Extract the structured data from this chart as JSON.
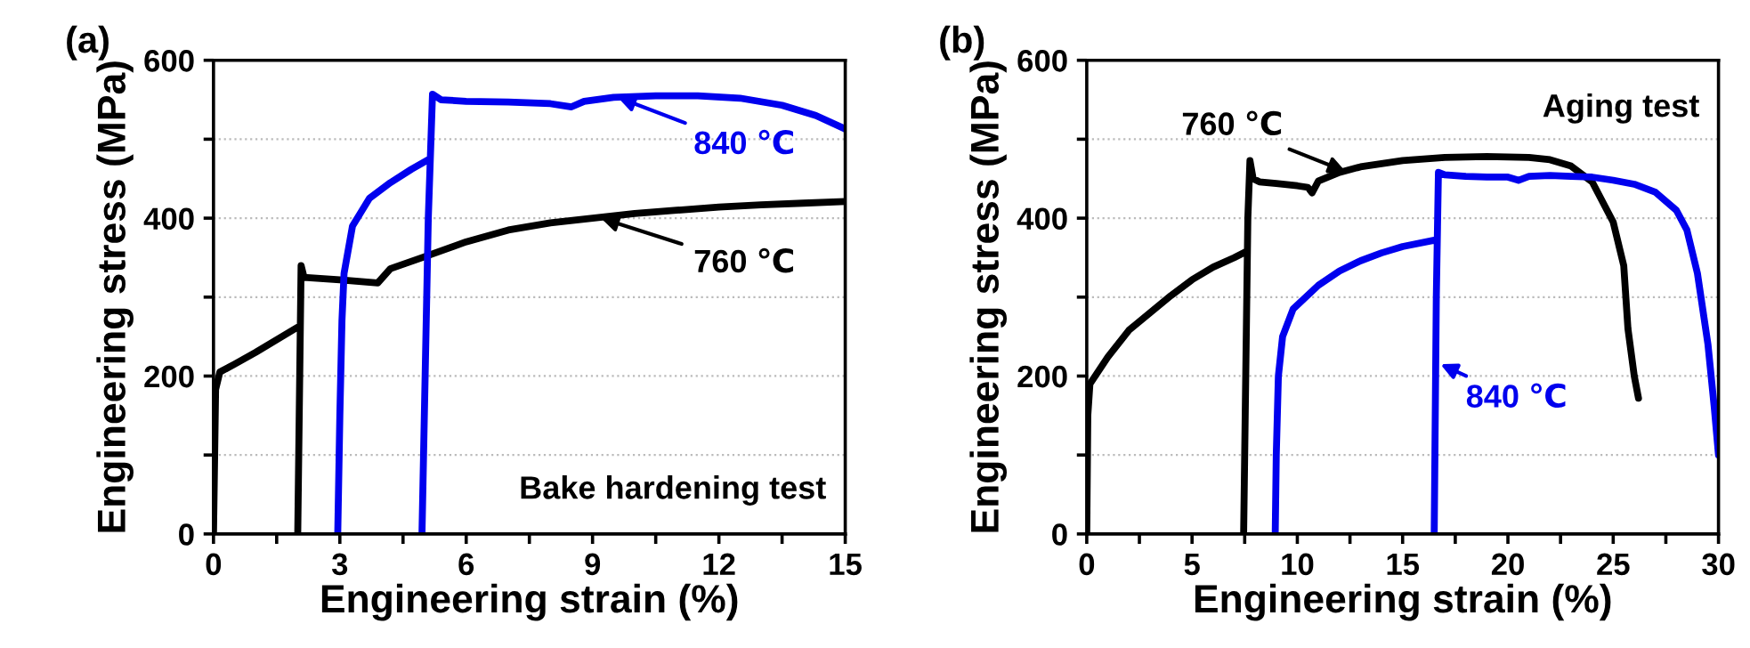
{
  "chart_data": [
    {
      "type": "line",
      "title": "(a)",
      "xlabel": "Engineering strain (%)",
      "ylabel": "Engineering stress (MPa)",
      "xlim": [
        0,
        15
      ],
      "xticks": [
        0,
        {
          "value": 1.5,
          "label": null
        },
        3,
        {
          "value": 4.5,
          "label": null
        },
        6,
        {
          "value": 7.5,
          "label": null
        },
        9,
        {
          "value": 10.5,
          "label": null
        },
        12,
        {
          "value": 13.5,
          "label": null
        },
        15
      ],
      "ylim": [
        0,
        600
      ],
      "yticks": [
        0,
        {
          "value": 100,
          "label": null
        },
        200,
        {
          "value": 300,
          "label": null
        },
        400,
        {
          "value": 500,
          "label": null
        },
        600
      ],
      "grid": "y",
      "legend": false,
      "series": [
        {
          "color": "#000000",
          "x": [
            0,
            0.05,
            0.15,
            0.5,
            1.0,
            2.0,
            null,
            2.0,
            2.08,
            2.15,
            3.0,
            3.9,
            4.2,
            5,
            6,
            7,
            8,
            9,
            10,
            11,
            12,
            13,
            14,
            15
          ],
          "values": [
            0,
            183,
            205,
            215,
            230,
            262,
            null,
            0,
            340,
            325,
            322,
            318,
            336,
            351,
            370,
            385,
            394,
            400,
            406,
            410,
            414,
            417,
            419,
            421
          ]
        },
        {
          "color": "#0000ee",
          "x": [
            2.95,
            3.0,
            3.05,
            3.1,
            3.3,
            3.7,
            4.2,
            4.7,
            5.1,
            null,
            4.95,
            5.1,
            5.2,
            5.4,
            6,
            7,
            8,
            8.5,
            8.8,
            9.5,
            10.5,
            11.5,
            12.5,
            13.5,
            14.3,
            15
          ],
          "values": [
            0,
            150,
            270,
            330,
            390,
            425,
            445,
            462,
            474,
            null,
            0,
            400,
            557,
            550,
            548,
            547,
            545,
            541,
            548,
            553,
            555,
            555,
            552,
            543,
            530,
            513
          ]
        }
      ],
      "annotations": [
        {
          "text": "840 ℃",
          "x": 9.6,
          "y": 553
        },
        {
          "text": "760 ℃",
          "x": 9.2,
          "y": 400
        },
        "Bake hardening test"
      ]
    },
    {
      "type": "line",
      "title": "(b)",
      "xlabel": "Engineering strain (%)",
      "ylabel": "Engineering stress (MPa)",
      "xlim": [
        0,
        30
      ],
      "xticks": [
        0,
        {
          "value": 2.5,
          "label": null
        },
        5,
        {
          "value": 7.5,
          "label": null
        },
        10,
        {
          "value": 12.5,
          "label": null
        },
        15,
        {
          "value": 17.5,
          "label": null
        },
        20,
        {
          "value": 22.5,
          "label": null
        },
        25,
        {
          "value": 27.5,
          "label": null
        },
        30
      ],
      "ylim": [
        0,
        600
      ],
      "yticks": [
        0,
        {
          "value": 100,
          "label": null
        },
        200,
        {
          "value": 300,
          "label": null
        },
        400,
        {
          "value": 500,
          "label": null
        },
        600
      ],
      "grid": "y",
      "legend": false,
      "series": [
        {
          "color": "#000000",
          "x": [
            0,
            0.05,
            0.15,
            1,
            2,
            3,
            4,
            5,
            6,
            7,
            7.6,
            null,
            7.45,
            7.65,
            7.75,
            7.9,
            8.2,
            9,
            10,
            10.5,
            10.7,
            11,
            12,
            13,
            15,
            17,
            19,
            21,
            22,
            23,
            24,
            25,
            25.5,
            25.7,
            26,
            26.2
          ],
          "values": [
            0,
            150,
            190,
            224,
            258,
            280,
            302,
            322,
            338,
            350,
            358,
            null,
            0,
            400,
            473,
            450,
            446,
            444,
            441,
            439,
            432,
            447,
            458,
            465,
            473,
            477,
            478,
            477,
            474,
            466,
            446,
            395,
            340,
            260,
            200,
            172
          ]
        },
        {
          "color": "#0000ee",
          "x": [
            8.95,
            9.0,
            9.1,
            9.3,
            9.8,
            11,
            12,
            13,
            14,
            15,
            16.5,
            null,
            16.5,
            16.6,
            16.7,
            17,
            18,
            19,
            20,
            20.5,
            21,
            22,
            23,
            24,
            25,
            26,
            27,
            28,
            28.5,
            29,
            29.5,
            29.8,
            30
          ],
          "values": [
            0,
            100,
            200,
            250,
            285,
            315,
            333,
            346,
            356,
            364,
            372,
            null,
            0,
            300,
            458,
            455,
            453,
            452,
            452,
            448,
            453,
            454,
            453,
            452,
            448,
            443,
            433,
            410,
            385,
            330,
            240,
            160,
            100
          ]
        }
      ],
      "annotations": [
        {
          "text": "760 ℃",
          "x": 12.3,
          "y": 459
        },
        {
          "text": "840 ℃",
          "x": 16.8,
          "y": 215
        },
        "Aging test"
      ]
    }
  ]
}
